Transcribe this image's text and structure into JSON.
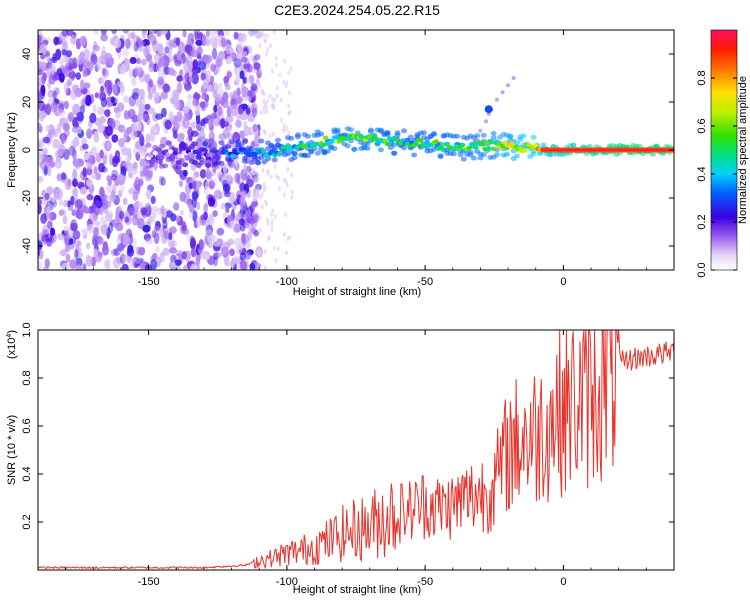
{
  "figure_title": "C2E3.2024.254.05.22.R15",
  "chart_data": [
    {
      "type": "heatmap",
      "title": "C2E3.2024.254.05.22.R15",
      "xlabel": "Height of straight line (km)",
      "ylabel": "Frequency (Hz)",
      "xlim": [
        -190,
        40
      ],
      "ylim": [
        -50,
        50
      ],
      "xticks": [
        "-150",
        "-100",
        "-50",
        "0"
      ],
      "yticks": [
        "40",
        "20",
        "0",
        "-20",
        "-40"
      ],
      "colorbar": {
        "label": "Normalized spectral amplitude",
        "range": [
          0,
          1
        ],
        "ticks": [
          "0.0",
          "0.2",
          "0.4",
          "0.6",
          "0.8"
        ]
      },
      "ridge": {
        "x": [
          -150,
          -130,
          -115,
          -105,
          -95,
          -85,
          -75,
          -65,
          -55,
          -45,
          -35,
          -25,
          -15,
          -5,
          5,
          15,
          25,
          40
        ],
        "y": [
          -2,
          -2,
          -1,
          -1,
          2,
          4,
          5,
          4,
          3,
          2,
          1,
          2,
          1,
          0,
          0,
          0,
          0,
          0
        ],
        "amplitude": [
          0.05,
          0.2,
          0.35,
          0.4,
          0.45,
          0.5,
          0.55,
          0.5,
          0.45,
          0.5,
          0.5,
          0.55,
          0.7,
          0.8,
          0.85,
          0.9,
          0.95,
          0.95
        ]
      },
      "grid": false,
      "colormap": "rainbow"
    },
    {
      "type": "line",
      "xlabel": "Height of straight line (km)",
      "ylabel": "SNR (10 * v/v)",
      "scale_label": "(x10",
      "scale_exp": "4",
      "xlim": [
        -190,
        40
      ],
      "ylim": [
        0,
        1.0
      ],
      "xticks": [
        "-150",
        "-100",
        "-50",
        "0"
      ],
      "yticks": [
        "0.2",
        "0.4",
        "0.6",
        "0.8",
        "1.0"
      ],
      "color": "#e8322a",
      "series": [
        {
          "x": [
            -190,
            -160,
            -130,
            -115,
            -110,
            -105,
            -100,
            -95,
            -90,
            -85,
            -80,
            -75,
            -70,
            -65,
            -60,
            -55,
            -50,
            -45,
            -40,
            -35,
            -30,
            -25,
            -20,
            -15,
            -10,
            -5,
            0,
            5,
            10,
            15,
            20,
            25,
            30,
            35,
            40
          ],
          "y": [
            0.01,
            0.01,
            0.01,
            0.02,
            0.04,
            0.05,
            0.07,
            0.08,
            0.1,
            0.12,
            0.15,
            0.17,
            0.18,
            0.22,
            0.24,
            0.25,
            0.28,
            0.26,
            0.27,
            0.3,
            0.32,
            0.35,
            0.5,
            0.55,
            0.56,
            0.62,
            0.68,
            0.7,
            0.72,
            0.8,
            0.86,
            0.88,
            0.89,
            0.9,
            0.91
          ]
        }
      ]
    }
  ]
}
